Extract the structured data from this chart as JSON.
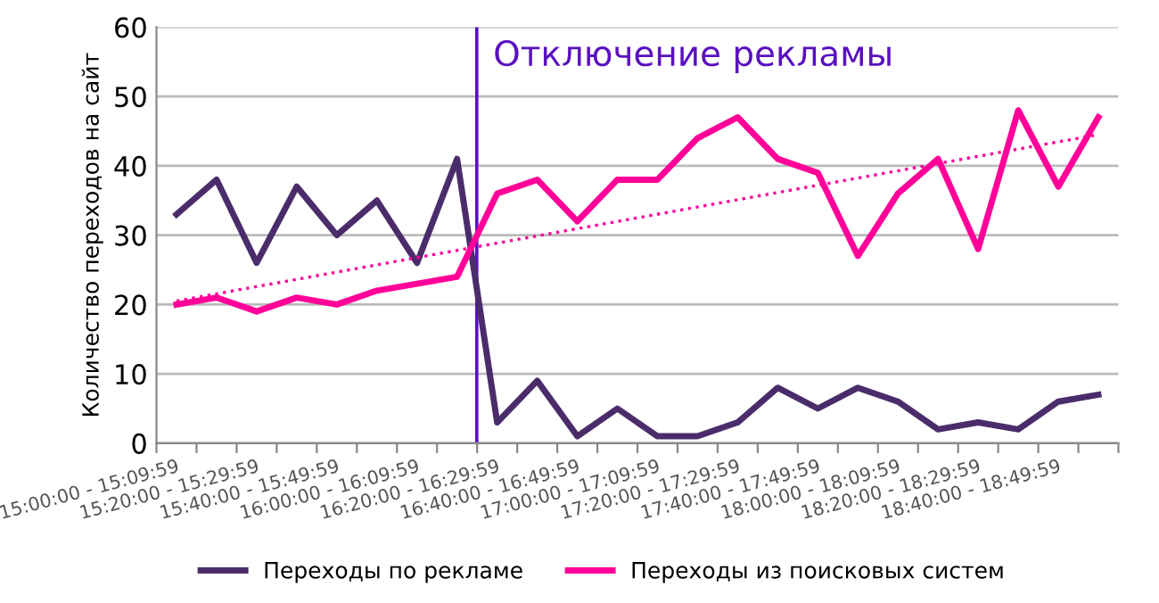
{
  "chart_data": {
    "type": "line",
    "ylabel": "Количество переходов на сайт",
    "categories": [
      "15:00:00 - 15:09:59",
      null,
      "15:20:00 - 15:29:59",
      null,
      "15:40:00 - 15:49:59",
      null,
      "16:00:00 - 16:09:59",
      null,
      "16:20:00 - 16:29:59",
      null,
      "16:40:00 - 16:49:59",
      null,
      "17:00:00 - 17:09:59",
      null,
      "17:20:00 - 17:29:59",
      null,
      "17:40:00 - 17:49:59",
      null,
      "18:00:00 - 18:09:59",
      null,
      "18:20:00 - 18:29:59",
      null,
      "18:40:00 - 18:49:59",
      null
    ],
    "series": [
      {
        "name": "Переходы по рекламе",
        "color": "#4b2c6b",
        "values": [
          33,
          38,
          26,
          37,
          30,
          35,
          26,
          41,
          3,
          9,
          1,
          5,
          1,
          1,
          3,
          8,
          5,
          8,
          6,
          2,
          3,
          2,
          6,
          7
        ]
      },
      {
        "name": "Переходы из поисковых систем",
        "color": "#ff0099",
        "values": [
          20,
          21,
          19,
          21,
          20,
          22,
          23,
          24,
          36,
          38,
          32,
          38,
          38,
          44,
          47,
          41,
          39,
          27,
          36,
          41,
          28,
          48,
          37,
          47
        ]
      },
      {
        "type": "line",
        "color": "#ff0099",
        "line_style": "dotted",
        "values": [
          20.5,
          null,
          null,
          null,
          null,
          null,
          null,
          null,
          null,
          null,
          null,
          null,
          null,
          null,
          null,
          null,
          null,
          null,
          null,
          null,
          null,
          null,
          null,
          44.5
        ]
      }
    ],
    "ylim": [
      0,
      60
    ],
    "yticks": [
      0,
      10,
      20,
      30,
      40,
      50,
      60
    ],
    "grid": "y",
    "annotations": [
      "Отключение рекламы"
    ],
    "legend": "bottom",
    "marker": "none",
    "line_style": "solid"
  }
}
